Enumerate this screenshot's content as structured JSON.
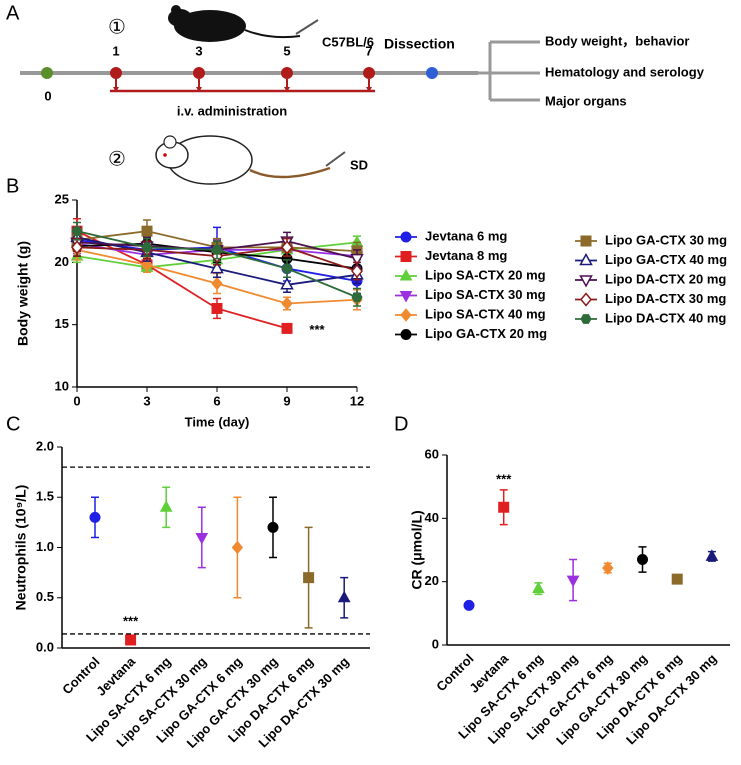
{
  "timeline": {
    "panel": "A",
    "strain_1": {
      "number": "①",
      "name": "C57BL/6"
    },
    "days": [
      0,
      1,
      3,
      5,
      7
    ],
    "event": "Dissection",
    "treatment": "i.v. administration",
    "outcomes": [
      "Body weight，behavior",
      "Hematology and serology",
      "Major organs"
    ],
    "strain_2": {
      "number": "②",
      "name": "SD"
    }
  },
  "chart_data": [
    {
      "type": "line",
      "panel": "B",
      "x_label": "Time (day)",
      "y_label": "Body weight (g)",
      "x": [
        0,
        3,
        6,
        9,
        12
      ],
      "xlim": [
        0,
        12
      ],
      "xticks": [
        0,
        3,
        6,
        9,
        12
      ],
      "ylim": [
        10,
        25
      ],
      "yticks": [
        10,
        15,
        20,
        25
      ],
      "legend": "right",
      "annotation": "***",
      "series": [
        {
          "name": "Jevtana 6 mg",
          "color": "#1f1fe6",
          "marker": "circle",
          "values": [
            21.8,
            21.0,
            21.2,
            19.5,
            18.5
          ],
          "errors": [
            0.8,
            1.0,
            1.6,
            1.0,
            1.0
          ]
        },
        {
          "name": "Jevtana 8 mg",
          "color": "#e02020",
          "marker": "square",
          "values": [
            22.5,
            19.8,
            16.3,
            14.7,
            null
          ],
          "errors": [
            1.0,
            0.5,
            0.8,
            0.2,
            null
          ]
        },
        {
          "name": "Lipo SA-CTX 20 mg",
          "color": "#5fcf3a",
          "marker": "triangle",
          "values": [
            20.5,
            19.6,
            20.2,
            21.0,
            21.6
          ],
          "errors": [
            0.5,
            0.4,
            0.6,
            0.5,
            0.5
          ]
        },
        {
          "name": "Lipo SA-CTX 30 mg",
          "color": "#9b30e0",
          "marker": "triangle-down",
          "values": [
            21.5,
            20.6,
            21.0,
            21.0,
            20.5
          ],
          "errors": [
            0.8,
            0.8,
            0.8,
            0.7,
            0.8
          ]
        },
        {
          "name": "Lipo SA-CTX 40 mg",
          "color": "#f08a30",
          "marker": "diamond",
          "values": [
            21.0,
            19.8,
            18.3,
            16.7,
            17.0
          ],
          "errors": [
            0.8,
            0.6,
            0.8,
            0.5,
            0.8
          ]
        },
        {
          "name": "Lipo GA-CTX 20 mg",
          "color": "#000000",
          "marker": "circle",
          "values": [
            21.3,
            21.5,
            20.8,
            20.3,
            19.5
          ],
          "errors": [
            0.8,
            0.9,
            0.8,
            0.8,
            0.8
          ]
        },
        {
          "name": "Lipo GA-CTX 30 mg",
          "color": "#8b6a2a",
          "marker": "square",
          "values": [
            21.8,
            22.5,
            21.2,
            21.2,
            20.9
          ],
          "errors": [
            0.7,
            0.9,
            0.7,
            0.7,
            0.7
          ]
        },
        {
          "name": "Lipo GA-CTX 40 mg",
          "color": "#1a1a7a",
          "marker": "triangle-open",
          "values": [
            22.0,
            20.8,
            19.5,
            18.2,
            19.0
          ],
          "errors": [
            0.8,
            0.7,
            0.7,
            0.6,
            0.7
          ]
        },
        {
          "name": "Lipo DA-CTX 20 mg",
          "color": "#4a1050",
          "marker": "triangle-down-open",
          "values": [
            21.6,
            21.3,
            21.0,
            21.7,
            20.3
          ],
          "errors": [
            0.7,
            0.7,
            0.7,
            0.7,
            0.7
          ]
        },
        {
          "name": "Lipo DA-CTX 30 mg",
          "color": "#8b1a1a",
          "marker": "diamond-open",
          "values": [
            21.2,
            21.0,
            20.5,
            21.2,
            19.3
          ],
          "errors": [
            0.7,
            0.7,
            0.7,
            0.7,
            0.7
          ]
        },
        {
          "name": "Lipo DA-CTX 40 mg",
          "color": "#2e6b3a",
          "marker": "hexagon",
          "values": [
            22.5,
            21.2,
            21.0,
            19.5,
            17.2
          ],
          "errors": [
            0.7,
            0.7,
            0.7,
            0.7,
            0.7
          ]
        }
      ]
    },
    {
      "type": "errorbar",
      "panel": "C",
      "y_label": "Neutrophils (10⁹/L)",
      "categories": [
        "Control",
        "Jevtana",
        "Lipo SA-CTX 6 mg",
        "Lipo SA-CTX 30 mg",
        "Lipo GA-CTX 6 mg",
        "Lipo GA-CTX 30 mg",
        "Lipo DA-CTX 6 mg",
        "Lipo DA-CTX 30 mg"
      ],
      "values": [
        1.3,
        0.08,
        1.4,
        1.1,
        1.0,
        1.2,
        0.7,
        0.5
      ],
      "errors": [
        0.2,
        0.03,
        0.2,
        0.3,
        0.5,
        0.3,
        0.5,
        0.2
      ],
      "colors": [
        "#1f1fe6",
        "#e02020",
        "#5fcf3a",
        "#9b30e0",
        "#f08a30",
        "#000000",
        "#8b6a2a",
        "#1a1a7a"
      ],
      "markers": [
        "circle",
        "square",
        "triangle",
        "triangle-down",
        "diamond",
        "circle",
        "square",
        "triangle"
      ],
      "ylim": [
        0,
        2
      ],
      "yticks": [
        {
          "value": 0,
          "label": "0.0"
        },
        0.5,
        {
          "value": 1,
          "label": "1.0"
        },
        1.5,
        {
          "value": 2,
          "label": "2.0"
        }
      ],
      "reference_lines": [
        1.8,
        0.14
      ],
      "annotation": "***"
    },
    {
      "type": "errorbar",
      "panel": "D",
      "y_label": "CR (μmol/L)",
      "categories": [
        "Control",
        "Jevtana",
        "Lipo SA-CTX 6 mg",
        "Lipo SA-CTX 30 mg",
        "Lipo GA-CTX 6 mg",
        "Lipo GA-CTX 30 mg",
        "Lipo DA-CTX 6 mg",
        "Lipo DA-CTX 30 mg"
      ],
      "values": [
        12.5,
        43.5,
        17.8,
        20.5,
        24.3,
        27,
        20.8,
        28
      ],
      "errors": [
        0.7,
        5.5,
        1.8,
        6.5,
        1.5,
        4,
        0.5,
        1.5
      ],
      "colors": [
        "#1f1fe6",
        "#e02020",
        "#5fcf3a",
        "#9b30e0",
        "#f08a30",
        "#000000",
        "#8b6a2a",
        "#1a1a7a"
      ],
      "markers": [
        "circle",
        "square",
        "triangle",
        "triangle-down",
        "diamond",
        "circle",
        "square",
        "triangle"
      ],
      "ylim": [
        0,
        60
      ],
      "yticks": [
        0,
        20,
        40,
        60
      ],
      "annotation": "***"
    }
  ]
}
